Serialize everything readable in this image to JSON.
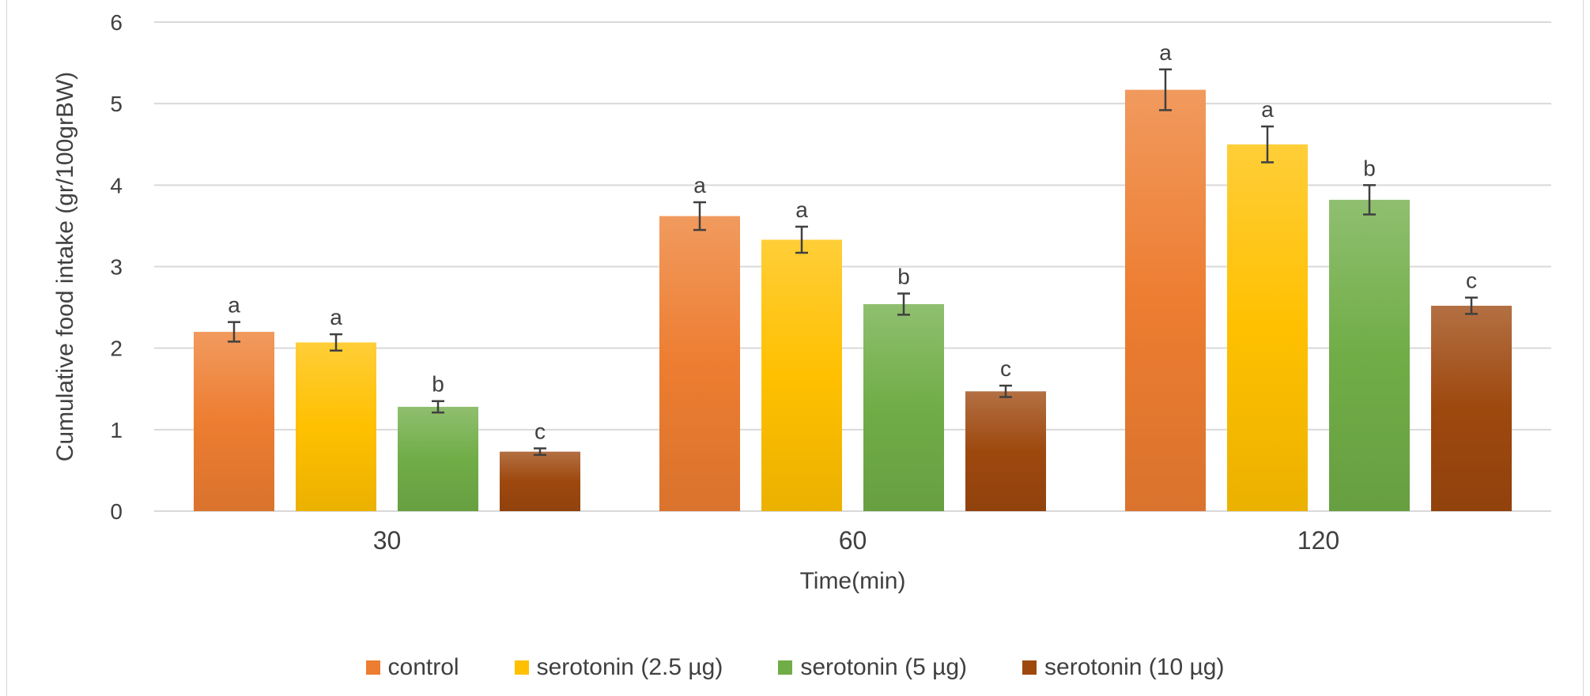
{
  "chart_data": {
    "type": "bar",
    "title": "",
    "xlabel": "Time(min)",
    "ylabel": "Cumulative food intake (gr/100grBW)",
    "categories": [
      "30",
      "60",
      "120"
    ],
    "ylim": [
      0,
      6
    ],
    "yticks": [
      "0",
      "1",
      "2",
      "3",
      "4",
      "5",
      "6"
    ],
    "grid": true,
    "legend_position": "bottom",
    "series": [
      {
        "name": "control",
        "color": "#ED7D31",
        "values": [
          2.2,
          3.62,
          5.17
        ],
        "errors": [
          0.12,
          0.17,
          0.25
        ],
        "labels": [
          "a",
          "a",
          "a"
        ]
      },
      {
        "name": "serotonin (2.5 µg)",
        "color": "#FFC000",
        "values": [
          2.07,
          3.33,
          4.5
        ],
        "errors": [
          0.1,
          0.16,
          0.22
        ],
        "labels": [
          "a",
          "a",
          "a"
        ]
      },
      {
        "name": "serotonin (5 µg)",
        "color": "#70AD47",
        "values": [
          1.28,
          2.54,
          3.82
        ],
        "errors": [
          0.07,
          0.13,
          0.18
        ],
        "labels": [
          "b",
          "b",
          "b"
        ]
      },
      {
        "name": "serotonin (10 µg)",
        "color": "#9E480E",
        "values": [
          0.73,
          1.47,
          2.52
        ],
        "errors": [
          0.04,
          0.07,
          0.1
        ],
        "labels": [
          "c",
          "c",
          "c"
        ]
      }
    ]
  }
}
